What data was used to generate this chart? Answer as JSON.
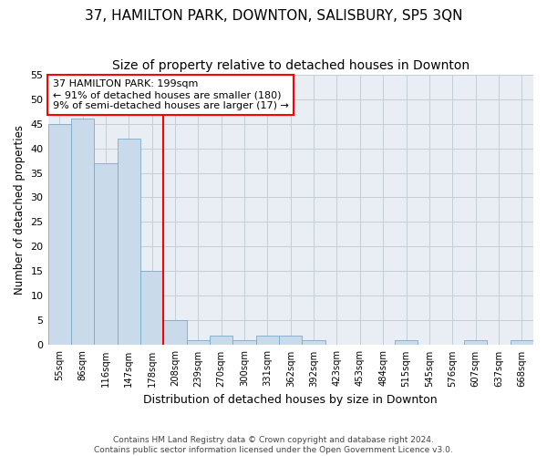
{
  "title": "37, HAMILTON PARK, DOWNTON, SALISBURY, SP5 3QN",
  "subtitle": "Size of property relative to detached houses in Downton",
  "xlabel": "Distribution of detached houses by size in Downton",
  "ylabel": "Number of detached properties",
  "footnote1": "Contains HM Land Registry data © Crown copyright and database right 2024.",
  "footnote2": "Contains public sector information licensed under the Open Government Licence v3.0.",
  "bar_labels": [
    "55sqm",
    "86sqm",
    "116sqm",
    "147sqm",
    "178sqm",
    "208sqm",
    "239sqm",
    "270sqm",
    "300sqm",
    "331sqm",
    "362sqm",
    "392sqm",
    "423sqm",
    "453sqm",
    "484sqm",
    "515sqm",
    "545sqm",
    "576sqm",
    "607sqm",
    "637sqm",
    "668sqm"
  ],
  "bar_values": [
    45,
    46,
    37,
    42,
    15,
    5,
    1,
    2,
    1,
    2,
    2,
    1,
    0,
    0,
    0,
    1,
    0,
    0,
    1,
    0,
    1
  ],
  "bar_color": "#c9daea",
  "bar_edge_color": "#7aaac8",
  "vline_x": 4.5,
  "vline_color": "red",
  "annotation_text": "37 HAMILTON PARK: 199sqm\n← 91% of detached houses are smaller (180)\n9% of semi-detached houses are larger (17) →",
  "annotation_box_color": "white",
  "annotation_box_edge": "red",
  "ylim": [
    0,
    55
  ],
  "yticks": [
    0,
    5,
    10,
    15,
    20,
    25,
    30,
    35,
    40,
    45,
    50,
    55
  ],
  "bg_color": "#e8eef4",
  "grid_color": "#c5cdd6",
  "title_fontsize": 11,
  "subtitle_fontsize": 10
}
